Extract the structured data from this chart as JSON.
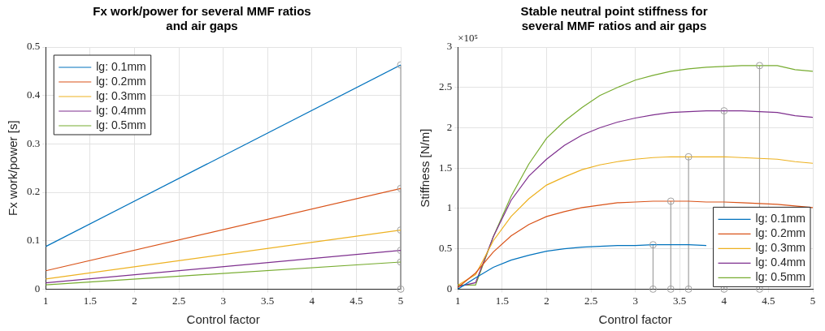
{
  "chart_data": [
    {
      "type": "line",
      "title": "Fx work/power for several MMF ratios and air gaps",
      "xlabel": "Control factor",
      "ylabel": "Fx work/power [s]",
      "x": [
        1,
        5
      ],
      "xlim": [
        1,
        5
      ],
      "xticks": [
        1,
        1.5,
        2,
        2.5,
        3,
        3.5,
        4,
        4.5,
        5
      ],
      "ylim": [
        0,
        0.5
      ],
      "yticks": [
        0,
        0.1,
        0.2,
        0.3,
        0.4,
        0.5
      ],
      "grid": true,
      "legend": "top left",
      "series": [
        {
          "name": "lg: 0.1mm",
          "color": "#0072bd",
          "values": [
            0.088,
            0.463
          ]
        },
        {
          "name": "lg: 0.2mm",
          "color": "#d95319",
          "values": [
            0.038,
            0.208
          ]
        },
        {
          "name": "lg: 0.3mm",
          "color": "#edb120",
          "values": [
            0.021,
            0.122
          ]
        },
        {
          "name": "lg: 0.4mm",
          "color": "#7e2f8e",
          "values": [
            0.013,
            0.08
          ]
        },
        {
          "name": "lg: 0.5mm",
          "color": "#77ac30",
          "values": [
            0.009,
            0.056
          ]
        },
        {
          "type": "lollipop",
          "color": "#a0a0a0",
          "x": [
            5,
            5,
            5,
            5,
            5
          ],
          "values": [
            0.463,
            0.208,
            0.122,
            0.08,
            0.056
          ]
        },
        {
          "type": "scatter",
          "marker": "circle",
          "color": "#a0a0a0",
          "x": [
            5
          ],
          "values": [
            0
          ]
        }
      ]
    },
    {
      "type": "line",
      "title": "Stable neutral point stiffness for several MMF ratios and air gaps",
      "xlabel": "Control factor",
      "ylabel": "Stiffness [N/m]",
      "annotations": [
        "×10⁵"
      ],
      "x": [
        1,
        1.2,
        1.4,
        1.6,
        1.8,
        2,
        2.2,
        2.4,
        2.6,
        2.8,
        3,
        3.2,
        3.4,
        3.6,
        3.8,
        4,
        4.2,
        4.4,
        4.6,
        4.8,
        5
      ],
      "xlim": [
        1,
        5
      ],
      "xticks": [
        1,
        1.5,
        2,
        2.5,
        3,
        3.5,
        4,
        4.5,
        5
      ],
      "ylim": [
        0,
        3
      ],
      "yticks": [
        0,
        0.5,
        1,
        1.5,
        2,
        2.5,
        3
      ],
      "grid": true,
      "legend": "bottom right",
      "series": [
        {
          "name": "lg: 0.1mm",
          "color": "#0072bd",
          "values": [
            0,
            0.14,
            0.27,
            0.36,
            0.42,
            0.47,
            0.5,
            0.52,
            0.53,
            0.54,
            0.54,
            0.55,
            0.55,
            0.55,
            0.54,
            null,
            null,
            null,
            null,
            null,
            null
          ]
        },
        {
          "name": "lg: 0.2mm",
          "color": "#d95319",
          "values": [
            0.02,
            0.2,
            0.46,
            0.66,
            0.8,
            0.9,
            0.96,
            1.01,
            1.04,
            1.07,
            1.08,
            1.09,
            1.09,
            1.09,
            1.08,
            1.08,
            1.07,
            1.06,
            1.05,
            1.03,
            1.01
          ]
        },
        {
          "name": "lg: 0.3mm",
          "color": "#edb120",
          "values": [
            0.05,
            0.18,
            0.6,
            0.9,
            1.12,
            1.29,
            1.39,
            1.48,
            1.54,
            1.58,
            1.61,
            1.63,
            1.64,
            1.64,
            1.64,
            1.64,
            1.63,
            1.62,
            1.61,
            1.58,
            1.56
          ]
        },
        {
          "name": "lg: 0.4mm",
          "color": "#7e2f8e",
          "values": [
            0.03,
            0.08,
            0.65,
            1.1,
            1.4,
            1.61,
            1.78,
            1.91,
            2.0,
            2.07,
            2.12,
            2.16,
            2.19,
            2.2,
            2.21,
            2.21,
            2.21,
            2.2,
            2.19,
            2.15,
            2.13
          ]
        },
        {
          "name": "lg: 0.5mm",
          "color": "#77ac30",
          "values": [
            0.05,
            0.05,
            0.65,
            1.15,
            1.55,
            1.87,
            2.08,
            2.25,
            2.4,
            2.5,
            2.59,
            2.65,
            2.7,
            2.73,
            2.75,
            2.76,
            2.77,
            2.77,
            2.77,
            2.72,
            2.7
          ]
        },
        {
          "type": "lollipop",
          "color": "#a0a0a0",
          "x": [
            3.2,
            3.4,
            3.6,
            4,
            4.4
          ],
          "values": [
            0.55,
            1.09,
            1.64,
            2.21,
            2.77
          ]
        },
        {
          "type": "scatter",
          "marker": "circle",
          "color": "#a0a0a0",
          "x": [
            3.2,
            3.4,
            3.6,
            4,
            4.4
          ],
          "values": [
            0,
            0,
            0,
            0,
            0
          ]
        }
      ]
    }
  ]
}
